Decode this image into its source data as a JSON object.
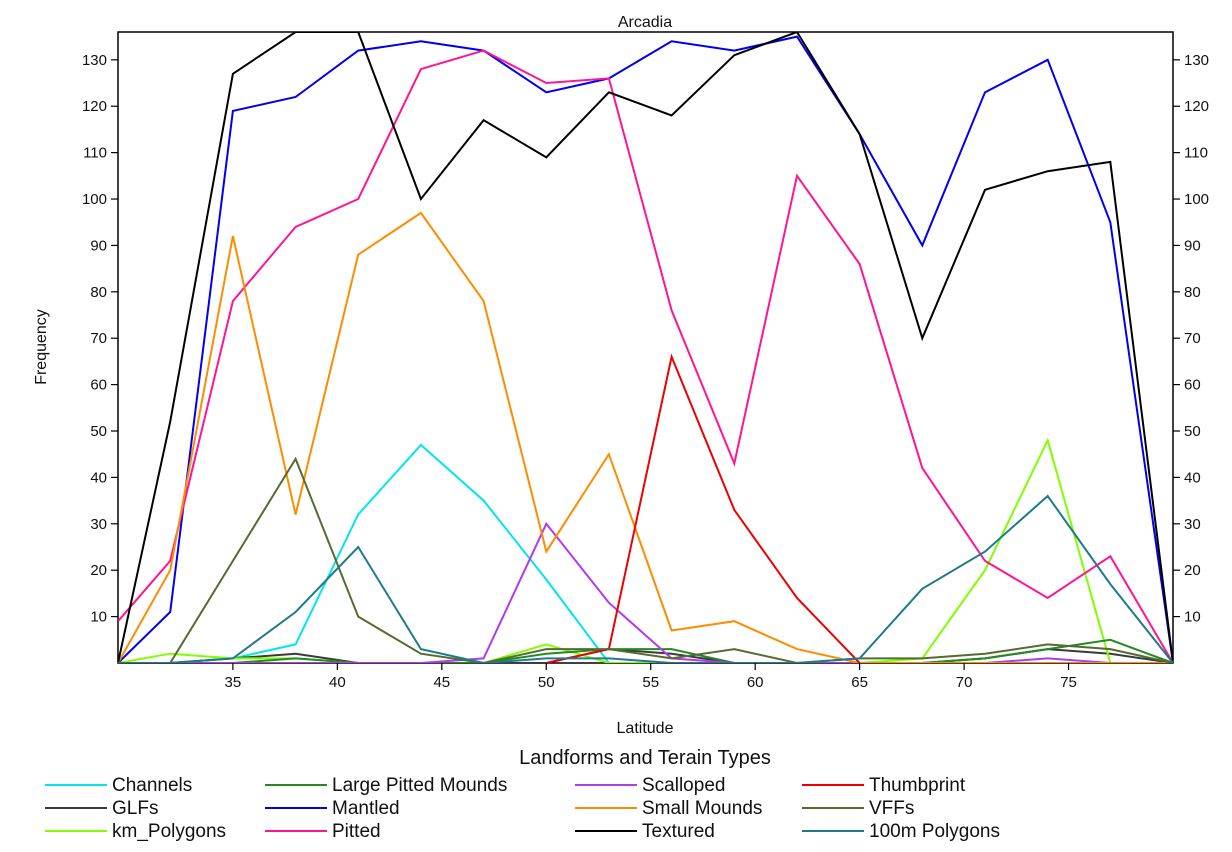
{
  "chart_data": {
    "type": "line",
    "title": "Arcadia",
    "xlabel": "Latitude",
    "ylabel": "Frequency",
    "xlim": [
      29.5,
      80
    ],
    "ylim": [
      0,
      136
    ],
    "x_ticks": [
      35,
      40,
      45,
      50,
      55,
      60,
      65,
      70,
      75
    ],
    "y_ticks": [
      10,
      20,
      30,
      40,
      50,
      60,
      70,
      80,
      90,
      100,
      110,
      120,
      130
    ],
    "grid": false,
    "legend_title": "Landforms and Terain Types",
    "legend_position": "bottom",
    "series": [
      {
        "name": "Channels",
        "color": "#00e5ee",
        "x": [
          29.5,
          32,
          35,
          38,
          41,
          44,
          47,
          50,
          53
        ],
        "y": [
          0,
          0,
          1,
          4,
          32,
          47,
          35,
          18,
          0
        ]
      },
      {
        "name": "GLFs",
        "color": "#3a3a3a",
        "x": [
          29.5,
          32,
          35,
          38,
          41,
          44,
          47,
          50,
          53,
          56,
          59,
          62,
          65,
          68,
          71,
          74,
          77,
          80
        ],
        "y": [
          0,
          0,
          1,
          2,
          0,
          0,
          0,
          0,
          3,
          2,
          0,
          0,
          0,
          0,
          1,
          3,
          2,
          0
        ]
      },
      {
        "name": "km_Polygons",
        "color": "#7fff00",
        "x": [
          29.5,
          32,
          35,
          38,
          41,
          44,
          47,
          50,
          53,
          56,
          59,
          62,
          65,
          68,
          71,
          74,
          77,
          80
        ],
        "y": [
          0,
          2,
          1,
          1,
          0,
          0,
          0,
          4,
          0,
          0,
          0,
          0,
          0,
          1,
          20,
          48,
          0,
          0
        ]
      },
      {
        "name": "Large Pitted Mounds",
        "color": "#228b22",
        "x": [
          29.5,
          32,
          35,
          38,
          41,
          44,
          47,
          50,
          53,
          56,
          59,
          62,
          65,
          68,
          71,
          74,
          77,
          80
        ],
        "y": [
          0,
          0,
          0,
          1,
          0,
          0,
          0,
          2,
          3,
          3,
          0,
          0,
          0,
          0,
          1,
          3,
          5,
          0
        ]
      },
      {
        "name": "Mantled",
        "color": "#0000ee",
        "x": [
          29.5,
          32,
          35,
          38,
          41,
          44,
          47,
          50,
          53,
          56,
          59,
          62,
          65,
          68,
          71,
          74,
          77,
          80
        ],
        "y": [
          0,
          11,
          119,
          122,
          132,
          134,
          132,
          123,
          126,
          134,
          132,
          135,
          114,
          90,
          123,
          130,
          95,
          0
        ]
      },
      {
        "name": "Pitted",
        "color": "#ff1493",
        "x": [
          29.5,
          32,
          35,
          38,
          41,
          44,
          47,
          50,
          53,
          56,
          59,
          62,
          65,
          68,
          71,
          74,
          77,
          80
        ],
        "y": [
          9,
          22,
          78,
          94,
          100,
          128,
          132,
          125,
          126,
          76,
          43,
          105,
          86,
          42,
          22,
          14,
          23,
          0
        ]
      },
      {
        "name": "Scalloped",
        "color": "#b23aee",
        "x": [
          29.5,
          32,
          35,
          38,
          41,
          44,
          47,
          50,
          53,
          56,
          59,
          62,
          65,
          68,
          71,
          74,
          77,
          80
        ],
        "y": [
          0,
          0,
          0,
          0,
          0,
          0,
          1,
          30,
          13,
          1,
          0,
          0,
          0,
          0,
          0,
          1,
          0,
          0
        ]
      },
      {
        "name": "Small Mounds",
        "color": "#ff8c00",
        "x": [
          29.5,
          32,
          35,
          38,
          41,
          44,
          47,
          50,
          53,
          56,
          59,
          62,
          65,
          68,
          71,
          74,
          77,
          80
        ],
        "y": [
          0,
          20,
          92,
          32,
          88,
          97,
          78,
          24,
          45,
          7,
          9,
          3,
          0,
          0,
          0,
          0,
          0,
          0
        ]
      },
      {
        "name": "Textured",
        "color": "#000000",
        "x": [
          29.5,
          32,
          35,
          38,
          41,
          44,
          47,
          50,
          53,
          56,
          59,
          62,
          65,
          68,
          71,
          74,
          77,
          80
        ],
        "y": [
          0,
          52,
          127,
          136,
          136,
          100,
          117,
          109,
          123,
          118,
          131,
          136,
          114,
          70,
          102,
          106,
          108,
          0
        ]
      },
      {
        "name": "Thumbprint",
        "color": "#ee0000",
        "x": [
          50,
          53,
          56,
          59,
          62,
          65
        ],
        "y": [
          0,
          3,
          66,
          33,
          14,
          0
        ]
      },
      {
        "name": "VFFs",
        "color": "#556b2f",
        "x": [
          29.5,
          32,
          35,
          38,
          41,
          44,
          47,
          50,
          53,
          56,
          59,
          62,
          65,
          68,
          71,
          74,
          77,
          80
        ],
        "y": [
          0,
          0,
          22,
          44,
          10,
          2,
          0,
          3,
          3,
          1,
          3,
          0,
          1,
          1,
          2,
          4,
          3,
          0
        ]
      },
      {
        "name": "100m Polygons",
        "color": "#1f7a8c",
        "x": [
          29.5,
          32,
          35,
          38,
          41,
          44,
          47,
          50,
          53,
          56,
          59,
          62,
          65,
          68,
          71,
          74,
          77,
          80
        ],
        "y": [
          0,
          0,
          1,
          11,
          25,
          3,
          0,
          1,
          1,
          0,
          0,
          0,
          1,
          16,
          24,
          36,
          17,
          0
        ]
      }
    ]
  }
}
